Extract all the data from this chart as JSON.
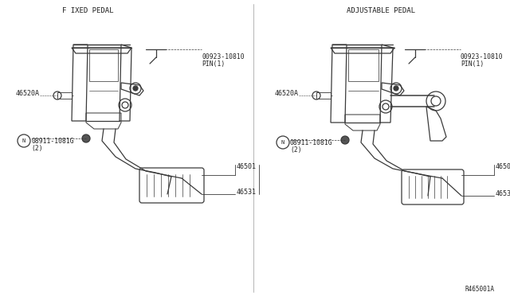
{
  "bg_color": "#ffffff",
  "line_color": "#3a3a3a",
  "text_color": "#222222",
  "title_left": "F IXED PEDAL",
  "title_right": "ADJUSTABLE PEDAL",
  "ref_code": "R465001A",
  "font": "monospace"
}
